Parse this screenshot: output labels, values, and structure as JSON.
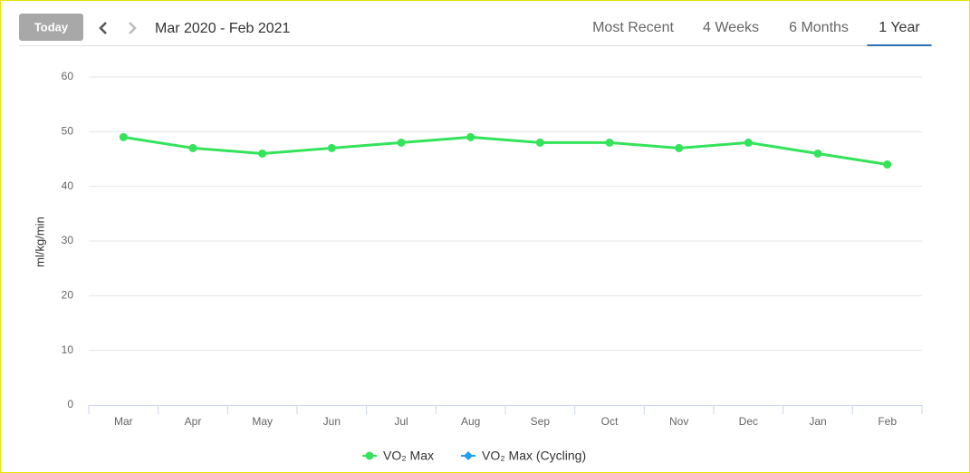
{
  "toolbar": {
    "today": "Today",
    "range": "Mar 2020 - Feb 2021",
    "tabs": [
      "Most Recent",
      "4 Weeks",
      "6 Months",
      "1 Year"
    ],
    "active_tab": 3
  },
  "chart_data": {
    "type": "line",
    "y_label": "ml/kg/min",
    "categories": [
      "Mar",
      "Apr",
      "May",
      "Jun",
      "Jul",
      "Aug",
      "Sep",
      "Oct",
      "Nov",
      "Dec",
      "Jan",
      "Feb"
    ],
    "series": [
      {
        "name": "VO₂ Max",
        "color": "#33e35a",
        "values": [
          49,
          47,
          46,
          47,
          48,
          49,
          48,
          48,
          47,
          48,
          46,
          44
        ]
      },
      {
        "name": "VO₂ Max (Cycling)",
        "color": "#1f9ff0",
        "values": [
          null,
          null,
          null,
          null,
          null,
          null,
          null,
          null,
          null,
          null,
          null,
          null
        ]
      }
    ],
    "ylim": [
      0,
      60
    ],
    "yticks": [
      0,
      10,
      20,
      30,
      40,
      50,
      60
    ],
    "grid": true
  }
}
